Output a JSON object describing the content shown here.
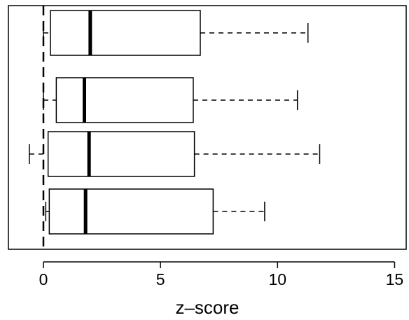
{
  "chart_data": {
    "type": "boxplot",
    "orientation": "horizontal",
    "title": "",
    "xlabel": "z–score",
    "ylabel": "",
    "xlim": [
      -1.4,
      15.6
    ],
    "x_ticks": [
      0,
      5,
      10,
      15
    ],
    "x_tick_labels": [
      "0",
      "5",
      "10",
      "15"
    ],
    "reference_line": {
      "x": 0,
      "style": "dashed"
    },
    "grid": false,
    "legend": "none",
    "colors": {
      "box": "#000000",
      "median": "#000000",
      "background": "#ffffff"
    },
    "boxes": [
      {
        "whisker_low": 0.0,
        "q1": 0.3,
        "median": 2.0,
        "q3": 6.7,
        "whisker_high": 11.3
      },
      {
        "whisker_low": 0.0,
        "q1": 0.55,
        "median": 1.75,
        "q3": 6.4,
        "whisker_high": 10.85
      },
      {
        "whisker_low": -0.6,
        "q1": 0.2,
        "median": 1.95,
        "q3": 6.45,
        "whisker_high": 11.8
      },
      {
        "whisker_low": 0.1,
        "q1": 0.25,
        "median": 1.8,
        "q3": 7.25,
        "whisker_high": 9.45
      }
    ]
  }
}
